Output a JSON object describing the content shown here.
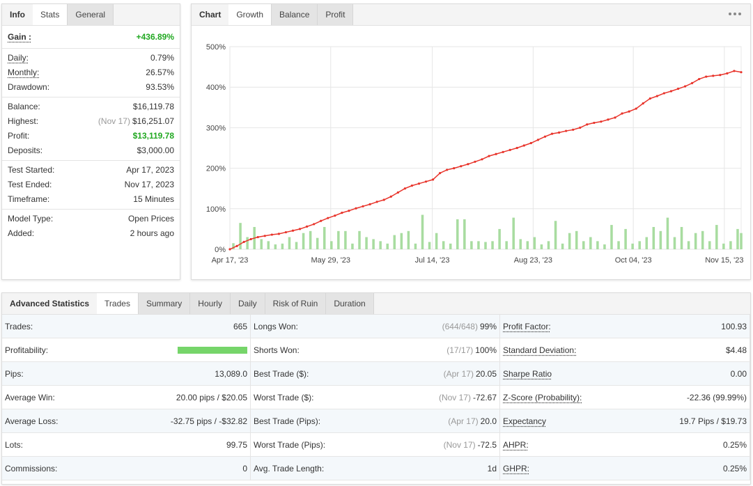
{
  "stats_panel": {
    "tabs": [
      "Info",
      "Stats",
      "General"
    ],
    "active_tab": 1,
    "groups": [
      [
        {
          "label": "Gain :",
          "value": "+436.89%",
          "highlight": true
        }
      ],
      [
        {
          "label": "Daily:",
          "value": "0.79%",
          "underline": true
        },
        {
          "label": "Monthly:",
          "value": "26.57%",
          "underline": true
        },
        {
          "label": "Drawdown:",
          "value": "93.53%"
        }
      ],
      [
        {
          "label": "Balance:",
          "value": "$16,119.78"
        },
        {
          "label": "Highest:",
          "note": "(Nov 17)",
          "value": "$16,251.07"
        },
        {
          "label": "Profit:",
          "value": "$13,119.78",
          "highlight": true
        },
        {
          "label": "Deposits:",
          "value": "$3,000.00"
        }
      ],
      [
        {
          "label": "Test Started:",
          "value": "Apr 17, 2023"
        },
        {
          "label": "Test Ended:",
          "value": "Nov 17, 2023"
        },
        {
          "label": "Timeframe:",
          "value": "15 Minutes"
        }
      ],
      [
        {
          "label": "Model Type:",
          "value": "Open Prices"
        },
        {
          "label": "Added:",
          "value": "2 hours ago"
        }
      ]
    ]
  },
  "chart_panel": {
    "tabs": [
      "Chart",
      "Growth",
      "Balance",
      "Profit"
    ],
    "active_tab": 1,
    "chart": {
      "type": "line",
      "line_color": "#e8332a",
      "bar_color": "#a8dca0",
      "xlim": [
        0,
        73
      ],
      "xticks": [
        {
          "value": 0,
          "label": "Apr 17, '23"
        },
        {
          "value": 14.4,
          "label": "May 29, '23"
        },
        {
          "value": 28.9,
          "label": "Jul 14, '23"
        },
        {
          "value": 43.3,
          "label": "Aug 23, '23"
        },
        {
          "value": 57.6,
          "label": "Oct 04, '23"
        },
        {
          "value": 70.6,
          "label": "Nov 15, '23"
        }
      ],
      "ylim": [
        0,
        500
      ],
      "yticks": [
        {
          "value": 0,
          "label": "0%"
        },
        {
          "value": 100,
          "label": "100%"
        },
        {
          "value": 200,
          "label": "200%"
        },
        {
          "value": 300,
          "label": "300%"
        },
        {
          "value": 400,
          "label": "400%"
        },
        {
          "value": 500,
          "label": "500%"
        }
      ],
      "grid": true,
      "values": [
        0,
        8,
        18,
        25,
        30,
        33,
        36,
        38,
        42,
        46,
        50,
        56,
        62,
        70,
        77,
        83,
        90,
        95,
        101,
        106,
        111,
        117,
        122,
        130,
        140,
        150,
        157,
        162,
        167,
        172,
        188,
        196,
        200,
        205,
        210,
        216,
        222,
        230,
        235,
        240,
        245,
        250,
        256,
        262,
        270,
        278,
        285,
        288,
        292,
        295,
        300,
        308,
        312,
        315,
        320,
        325,
        335,
        340,
        347,
        360,
        372,
        378,
        385,
        390,
        396,
        402,
        410,
        420,
        426,
        428,
        430,
        434,
        440,
        437
      ],
      "bars": [
        15,
        65,
        30,
        55,
        25,
        20,
        12,
        14,
        30,
        18,
        40,
        45,
        28,
        55,
        20,
        45,
        45,
        14,
        45,
        30,
        25,
        20,
        14,
        35,
        40,
        45,
        14,
        85,
        18,
        40,
        20,
        14,
        74,
        74,
        20,
        20,
        18,
        20,
        50,
        20,
        78,
        25,
        20,
        30,
        12,
        20,
        70,
        14,
        40,
        45,
        20,
        30,
        20,
        12,
        60,
        20,
        50,
        14,
        20,
        30,
        55,
        45,
        78,
        30,
        55,
        20,
        40,
        45,
        20,
        60,
        14,
        20,
        50,
        40
      ]
    }
  },
  "advanced_panel": {
    "title": "Advanced Statistics",
    "tabs": [
      "Trades",
      "Summary",
      "Hourly",
      "Daily",
      "Risk of Ruin",
      "Duration"
    ],
    "active_tab": 0,
    "columns": [
      [
        {
          "label": "Trades:",
          "value": "665"
        },
        {
          "label": "Profitability:",
          "bar": 100
        },
        {
          "label": "Pips:",
          "value": "13,089.0"
        },
        {
          "label": "Average Win:",
          "value": "20.00 pips / $20.05"
        },
        {
          "label": "Average Loss:",
          "value": "-32.75 pips / -$32.82"
        },
        {
          "label": "Lots:",
          "value": "99.75"
        },
        {
          "label": "Commissions:",
          "value": "0"
        }
      ],
      [
        {
          "label": "Longs Won:",
          "note": "(644/648)",
          "value": "99%"
        },
        {
          "label": "Shorts Won:",
          "note": "(17/17)",
          "value": "100%"
        },
        {
          "label": "Best Trade ($):",
          "note": "(Apr 17)",
          "value": "20.05"
        },
        {
          "label": "Worst Trade ($):",
          "note": "(Nov 17)",
          "value": "-72.67"
        },
        {
          "label": "Best Trade (Pips):",
          "note": "(Apr 17)",
          "value": "20.0"
        },
        {
          "label": "Worst Trade (Pips):",
          "note": "(Nov 17)",
          "value": "-72.5"
        },
        {
          "label": "Avg. Trade Length:",
          "value": "1d"
        }
      ],
      [
        {
          "label": "Profit Factor:",
          "value": "100.93",
          "underline": true
        },
        {
          "label": "Standard Deviation:",
          "value": "$4.48",
          "underline": true
        },
        {
          "label": "Sharpe Ratio",
          "value": "0.00",
          "underline": true
        },
        {
          "label": "Z-Score (Probability):",
          "value": "-22.36 (99.99%)",
          "underline": true
        },
        {
          "label": "Expectancy",
          "value": "19.7 Pips / $19.73",
          "underline": true
        },
        {
          "label": "AHPR:",
          "value": "0.25%",
          "underline": true
        },
        {
          "label": "GHPR:",
          "value": "0.25%",
          "underline": true
        }
      ]
    ]
  }
}
